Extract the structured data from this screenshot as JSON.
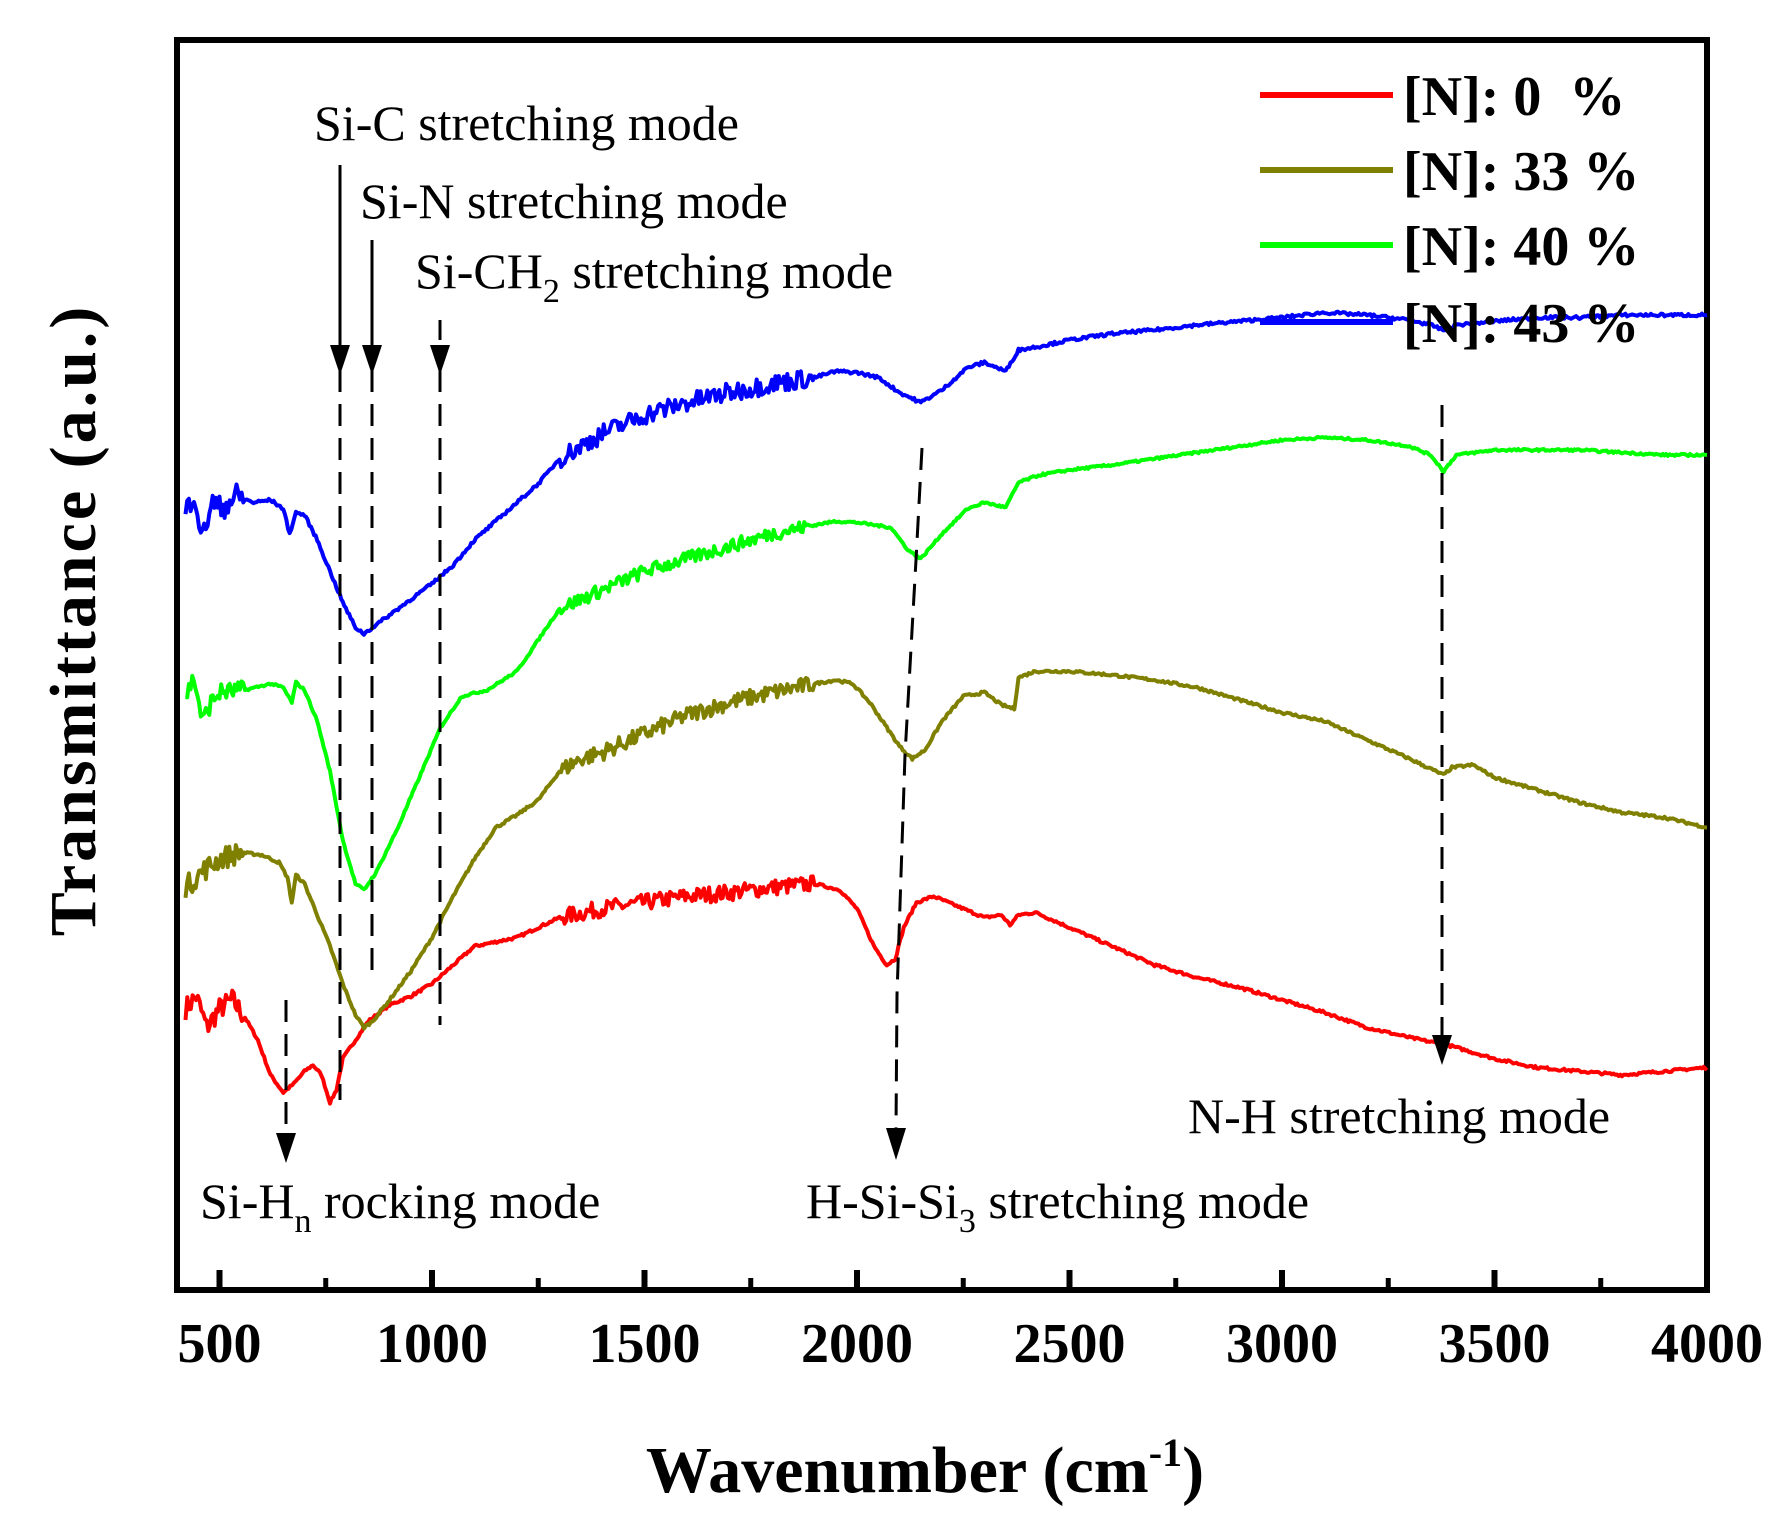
{
  "chart_data": {
    "type": "line",
    "title": "",
    "xlabel": "Wavenumber (cm",
    "xlabel_sup": "-1",
    "xlabel_close": ")",
    "ylabel": "Transmittance (a.u.)",
    "xlim": [
      400,
      4000
    ],
    "ylim": [
      0,
      1
    ],
    "grid": false,
    "legend_position": "top-right",
    "x_ticks": [
      500,
      1000,
      1500,
      2000,
      2500,
      3000,
      3500,
      4000
    ],
    "x_tick_labels": [
      "500",
      "1000",
      "1500",
      "2000",
      "2500",
      "3000",
      "3500",
      "4000"
    ],
    "series": [
      {
        "name": "[N]: 0  %",
        "color": "#ff0000",
        "noise": 0.006,
        "points": [
          [
            420,
            0.225
          ],
          [
            445,
            0.235
          ],
          [
            470,
            0.21
          ],
          [
            500,
            0.225
          ],
          [
            530,
            0.232
          ],
          [
            560,
            0.218
          ],
          [
            590,
            0.2
          ],
          [
            620,
            0.172
          ],
          [
            650,
            0.158
          ],
          [
            675,
            0.165
          ],
          [
            700,
            0.175
          ],
          [
            720,
            0.18
          ],
          [
            740,
            0.172
          ],
          [
            760,
            0.15
          ],
          [
            775,
            0.16
          ],
          [
            790,
            0.185
          ],
          [
            820,
            0.2
          ],
          [
            850,
            0.215
          ],
          [
            900,
            0.228
          ],
          [
            950,
            0.235
          ],
          [
            1000,
            0.245
          ],
          [
            1050,
            0.26
          ],
          [
            1100,
            0.275
          ],
          [
            1200,
            0.282
          ],
          [
            1250,
            0.29
          ],
          [
            1300,
            0.298
          ],
          [
            1400,
            0.305
          ],
          [
            1500,
            0.31
          ],
          [
            1600,
            0.315
          ],
          [
            1700,
            0.318
          ],
          [
            1800,
            0.322
          ],
          [
            1900,
            0.325
          ],
          [
            1960,
            0.32
          ],
          [
            2000,
            0.305
          ],
          [
            2040,
            0.275
          ],
          [
            2070,
            0.26
          ],
          [
            2090,
            0.265
          ],
          [
            2110,
            0.29
          ],
          [
            2140,
            0.31
          ],
          [
            2180,
            0.315
          ],
          [
            2250,
            0.305
          ],
          [
            2300,
            0.298
          ],
          [
            2340,
            0.3
          ],
          [
            2360,
            0.292
          ],
          [
            2380,
            0.3
          ],
          [
            2420,
            0.302
          ],
          [
            2500,
            0.29
          ],
          [
            2600,
            0.275
          ],
          [
            2700,
            0.26
          ],
          [
            2800,
            0.25
          ],
          [
            2900,
            0.242
          ],
          [
            3000,
            0.232
          ],
          [
            3100,
            0.222
          ],
          [
            3200,
            0.21
          ],
          [
            3300,
            0.202
          ],
          [
            3400,
            0.195
          ],
          [
            3500,
            0.185
          ],
          [
            3600,
            0.178
          ],
          [
            3700,
            0.175
          ],
          [
            3800,
            0.172
          ],
          [
            3900,
            0.175
          ],
          [
            4000,
            0.178
          ]
        ]
      },
      {
        "name": "[N]: 33 %",
        "color": "#808000",
        "noise": 0.006,
        "points": [
          [
            420,
            0.322
          ],
          [
            460,
            0.335
          ],
          [
            500,
            0.345
          ],
          [
            550,
            0.35
          ],
          [
            600,
            0.348
          ],
          [
            640,
            0.342
          ],
          [
            660,
            0.33
          ],
          [
            670,
            0.31
          ],
          [
            680,
            0.332
          ],
          [
            700,
            0.325
          ],
          [
            730,
            0.3
          ],
          [
            760,
            0.275
          ],
          [
            790,
            0.245
          ],
          [
            820,
            0.22
          ],
          [
            840,
            0.21
          ],
          [
            860,
            0.215
          ],
          [
            900,
            0.232
          ],
          [
            950,
            0.255
          ],
          [
            1000,
            0.282
          ],
          [
            1050,
            0.315
          ],
          [
            1100,
            0.345
          ],
          [
            1150,
            0.37
          ],
          [
            1200,
            0.38
          ],
          [
            1250,
            0.392
          ],
          [
            1300,
            0.415
          ],
          [
            1350,
            0.425
          ],
          [
            1400,
            0.43
          ],
          [
            1500,
            0.445
          ],
          [
            1600,
            0.46
          ],
          [
            1700,
            0.47
          ],
          [
            1800,
            0.478
          ],
          [
            1900,
            0.485
          ],
          [
            1950,
            0.488
          ],
          [
            1990,
            0.485
          ],
          [
            2030,
            0.47
          ],
          [
            2070,
            0.45
          ],
          [
            2100,
            0.435
          ],
          [
            2130,
            0.425
          ],
          [
            2160,
            0.432
          ],
          [
            2200,
            0.455
          ],
          [
            2250,
            0.475
          ],
          [
            2300,
            0.478
          ],
          [
            2340,
            0.468
          ],
          [
            2370,
            0.465
          ],
          [
            2380,
            0.49
          ],
          [
            2420,
            0.495
          ],
          [
            2500,
            0.495
          ],
          [
            2600,
            0.492
          ],
          [
            2700,
            0.488
          ],
          [
            2800,
            0.482
          ],
          [
            2900,
            0.472
          ],
          [
            3000,
            0.462
          ],
          [
            3100,
            0.455
          ],
          [
            3200,
            0.44
          ],
          [
            3300,
            0.425
          ],
          [
            3380,
            0.412
          ],
          [
            3400,
            0.418
          ],
          [
            3450,
            0.42
          ],
          [
            3500,
            0.41
          ],
          [
            3600,
            0.4
          ],
          [
            3700,
            0.39
          ],
          [
            3800,
            0.382
          ],
          [
            3900,
            0.378
          ],
          [
            4000,
            0.37
          ]
        ]
      },
      {
        "name": "[N]: 40 %",
        "color": "#00ff00",
        "noise": 0.005,
        "points": [
          [
            420,
            0.475
          ],
          [
            440,
            0.49
          ],
          [
            460,
            0.455
          ],
          [
            480,
            0.47
          ],
          [
            500,
            0.478
          ],
          [
            560,
            0.48
          ],
          [
            620,
            0.485
          ],
          [
            650,
            0.482
          ],
          [
            670,
            0.47
          ],
          [
            680,
            0.486
          ],
          [
            700,
            0.48
          ],
          [
            730,
            0.455
          ],
          [
            760,
            0.415
          ],
          [
            790,
            0.36
          ],
          [
            820,
            0.325
          ],
          [
            840,
            0.32
          ],
          [
            870,
            0.335
          ],
          [
            920,
            0.37
          ],
          [
            970,
            0.41
          ],
          [
            1020,
            0.45
          ],
          [
            1070,
            0.475
          ],
          [
            1130,
            0.48
          ],
          [
            1200,
            0.495
          ],
          [
            1260,
            0.525
          ],
          [
            1300,
            0.545
          ],
          [
            1400,
            0.56
          ],
          [
            1500,
            0.575
          ],
          [
            1600,
            0.585
          ],
          [
            1700,
            0.595
          ],
          [
            1800,
            0.605
          ],
          [
            1900,
            0.612
          ],
          [
            1950,
            0.615
          ],
          [
            2000,
            0.614
          ],
          [
            2040,
            0.612
          ],
          [
            2080,
            0.61
          ],
          [
            2120,
            0.592
          ],
          [
            2150,
            0.585
          ],
          [
            2200,
            0.605
          ],
          [
            2260,
            0.625
          ],
          [
            2300,
            0.63
          ],
          [
            2350,
            0.626
          ],
          [
            2380,
            0.646
          ],
          [
            2430,
            0.652
          ],
          [
            2500,
            0.656
          ],
          [
            2600,
            0.66
          ],
          [
            2700,
            0.665
          ],
          [
            2800,
            0.67
          ],
          [
            2900,
            0.675
          ],
          [
            3000,
            0.68
          ],
          [
            3100,
            0.682
          ],
          [
            3200,
            0.68
          ],
          [
            3300,
            0.675
          ],
          [
            3350,
            0.668
          ],
          [
            3380,
            0.655
          ],
          [
            3410,
            0.668
          ],
          [
            3500,
            0.672
          ],
          [
            3600,
            0.672
          ],
          [
            3700,
            0.672
          ],
          [
            3800,
            0.67
          ],
          [
            3900,
            0.668
          ],
          [
            4000,
            0.668
          ]
        ]
      },
      {
        "name": "[N]: 43 %",
        "color": "#0000ff",
        "noise": 0.007,
        "points": [
          [
            420,
            0.62
          ],
          [
            440,
            0.64
          ],
          [
            460,
            0.6
          ],
          [
            480,
            0.63
          ],
          [
            500,
            0.625
          ],
          [
            540,
            0.635
          ],
          [
            580,
            0.63
          ],
          [
            620,
            0.632
          ],
          [
            650,
            0.625
          ],
          [
            665,
            0.605
          ],
          [
            680,
            0.622
          ],
          [
            700,
            0.62
          ],
          [
            730,
            0.6
          ],
          [
            760,
            0.575
          ],
          [
            790,
            0.55
          ],
          [
            820,
            0.53
          ],
          [
            840,
            0.525
          ],
          [
            880,
            0.535
          ],
          [
            940,
            0.55
          ],
          [
            1000,
            0.565
          ],
          [
            1050,
            0.58
          ],
          [
            1100,
            0.6
          ],
          [
            1150,
            0.615
          ],
          [
            1200,
            0.63
          ],
          [
            1250,
            0.645
          ],
          [
            1300,
            0.665
          ],
          [
            1400,
            0.685
          ],
          [
            1500,
            0.7
          ],
          [
            1600,
            0.71
          ],
          [
            1700,
            0.718
          ],
          [
            1800,
            0.725
          ],
          [
            1900,
            0.73
          ],
          [
            1950,
            0.735
          ],
          [
            2000,
            0.734
          ],
          [
            2050,
            0.73
          ],
          [
            2100,
            0.718
          ],
          [
            2150,
            0.71
          ],
          [
            2200,
            0.72
          ],
          [
            2260,
            0.738
          ],
          [
            2300,
            0.742
          ],
          [
            2350,
            0.735
          ],
          [
            2380,
            0.752
          ],
          [
            2430,
            0.755
          ],
          [
            2500,
            0.76
          ],
          [
            2600,
            0.765
          ],
          [
            2700,
            0.768
          ],
          [
            2800,
            0.772
          ],
          [
            2900,
            0.775
          ],
          [
            3000,
            0.778
          ],
          [
            3100,
            0.782
          ],
          [
            3200,
            0.78
          ],
          [
            3300,
            0.776
          ],
          [
            3350,
            0.772
          ],
          [
            3380,
            0.768
          ],
          [
            3410,
            0.772
          ],
          [
            3500,
            0.775
          ],
          [
            3600,
            0.778
          ],
          [
            3700,
            0.778
          ],
          [
            3800,
            0.78
          ],
          [
            3900,
            0.78
          ],
          [
            4000,
            0.78
          ]
        ]
      }
    ],
    "annotations": [
      {
        "label": "Si-C stretching mode",
        "sub": "",
        "tail": ""
      },
      {
        "label": "Si-N stretching mode",
        "sub": "",
        "tail": ""
      },
      {
        "label": "Si-CH",
        "sub": "2",
        "tail": " stretching mode"
      },
      {
        "label": "Si-H",
        "sub": "n",
        "tail": " rocking mode"
      },
      {
        "label": "H-Si-Si",
        "sub": "3",
        "tail": " stretching mode"
      },
      {
        "label": "N-H stretching mode",
        "sub": "",
        "tail": ""
      }
    ]
  }
}
